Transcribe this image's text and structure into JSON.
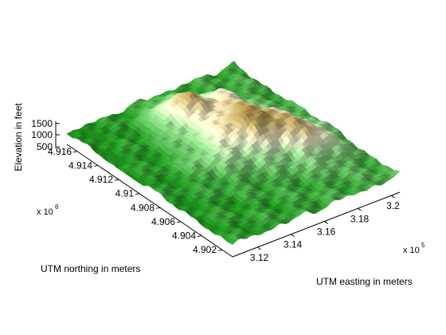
{
  "chart_data": {
    "type": "surface",
    "title": "",
    "zlabel": "Elevation in feet",
    "xlabel": "UTM easting in meters",
    "ylabel": "UTM northing in meters",
    "x_exponent_label": "x 10",
    "x_exponent_power": "5",
    "y_exponent_label": "x 10",
    "y_exponent_power": "6",
    "x_ticks": [
      "3.12",
      "3.14",
      "3.16",
      "3.18",
      "3.2"
    ],
    "x_tick_values": [
      3.12,
      3.14,
      3.16,
      3.18,
      3.2
    ],
    "y_ticks": [
      "4.902",
      "4.904",
      "4.906",
      "4.908",
      "4.91",
      "4.912",
      "4.914",
      "4.916"
    ],
    "y_tick_values": [
      4.902,
      4.904,
      4.906,
      4.908,
      4.91,
      4.912,
      4.914,
      4.916
    ],
    "z_ticks": [
      "500",
      "1000",
      "1500"
    ],
    "z_tick_values": [
      500,
      1000,
      1500
    ],
    "xlim": [
      3.105,
      3.205
    ],
    "ylim": [
      4.901,
      4.917
    ],
    "zlim": [
      0,
      1600
    ],
    "colormap": "demcmap: green (low) → tan → brown (high)",
    "colors": {
      "low": "#1e8c1e",
      "mid_low": "#8fd08a",
      "mid": "#efe9c8",
      "mid_high": "#b59d5a",
      "high": "#6e4a1c"
    },
    "grid": false,
    "box": false,
    "peak_elevation_approx": 1550,
    "min_elevation_approx": 300
  }
}
